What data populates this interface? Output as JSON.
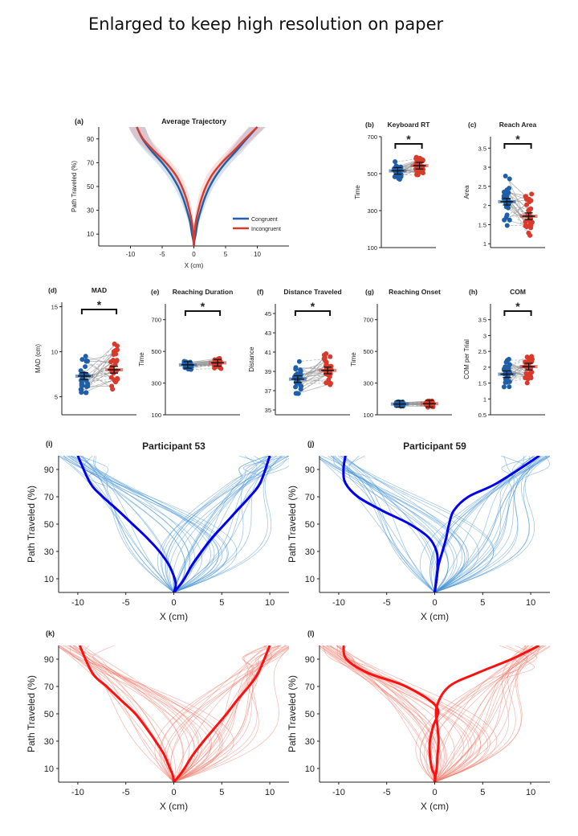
{
  "header": "Enlarged to keep high resolution on paper",
  "colors": {
    "congruent": "#1f5fa8",
    "incongruent": "#d93a2b",
    "congruent_thin": "#3f8fd6",
    "incongruent_thin": "#f07a6a",
    "strong_blue": "#0000ee",
    "strong_red": "#ff1010"
  },
  "chart_data": [
    {
      "panel": "(a)",
      "type": "line",
      "title": "Average Trajectory",
      "xlabel": "X (cm)",
      "ylabel": "Path Traveled (%)",
      "xlim": [
        -15,
        15
      ],
      "ylim": [
        0,
        100
      ],
      "xticks": [
        -10,
        -5,
        0,
        5,
        10
      ],
      "yticks": [
        10,
        30,
        50,
        70,
        90
      ],
      "legend": {
        "placement": "lower-right"
      },
      "series": [
        {
          "name": "Congruent",
          "color": "#1f5fa8",
          "x": [
            0,
            -0.1,
            -0.3,
            -0.6,
            -1.1,
            -1.7,
            -2.5,
            -3.6,
            -5.0,
            -6.7,
            -8.1,
            -9.0
          ],
          "y": [
            0,
            5,
            10,
            20,
            30,
            40,
            50,
            60,
            70,
            80,
            90,
            100
          ]
        },
        {
          "name": "Congruent",
          "color": "#1f5fa8",
          "x": [
            0,
            0.1,
            0.3,
            0.6,
            1.1,
            1.7,
            2.5,
            3.6,
            5.0,
            6.7,
            8.3,
            10.0
          ],
          "y": [
            0,
            5,
            10,
            20,
            30,
            40,
            50,
            60,
            70,
            80,
            90,
            100
          ]
        },
        {
          "name": "Incongruent",
          "color": "#d93a2b",
          "x": [
            0,
            0.0,
            -0.1,
            -0.3,
            -0.7,
            -1.2,
            -1.9,
            -2.9,
            -4.4,
            -6.3,
            -8.0,
            -9.0
          ],
          "y": [
            0,
            5,
            10,
            20,
            30,
            40,
            50,
            60,
            70,
            80,
            90,
            100
          ]
        },
        {
          "name": "Incongruent",
          "color": "#d93a2b",
          "x": [
            0,
            0.0,
            0.1,
            0.3,
            0.7,
            1.2,
            1.9,
            2.9,
            4.4,
            6.3,
            8.1,
            10.0
          ],
          "y": [
            0,
            5,
            10,
            20,
            30,
            40,
            50,
            60,
            70,
            80,
            90,
            100
          ]
        }
      ]
    },
    {
      "panel": "(b)",
      "type": "scatter",
      "title": "Keyboard RT",
      "ylabel": "Time",
      "ylim": [
        100,
        700
      ],
      "yticks": [
        100,
        300,
        500,
        700
      ],
      "means": [
        515,
        543
      ],
      "significant": true
    },
    {
      "panel": "(c)",
      "type": "scatter",
      "title": "Reach Area",
      "ylabel": "Area",
      "ylim": [
        0.9,
        3.8
      ],
      "yticks": [
        1,
        1.5,
        2,
        2.5,
        3,
        3.5
      ],
      "means": [
        2.1,
        1.72
      ],
      "significant": true
    },
    {
      "panel": "(d)",
      "type": "scatter",
      "title": "MAD",
      "ylabel": "MAD (cm)",
      "ylim": [
        3,
        15.5
      ],
      "yticks": [
        5,
        10,
        15
      ],
      "means": [
        7.3,
        8.0
      ],
      "significant": true
    },
    {
      "panel": "(e)",
      "type": "scatter",
      "title": "Reaching Duration",
      "ylabel": "Time",
      "ylim": [
        100,
        800
      ],
      "yticks": [
        100,
        300,
        500,
        700
      ],
      "means": [
        415,
        428
      ],
      "significant": true
    },
    {
      "panel": "(f)",
      "type": "scatter",
      "title": "Distance Traveled",
      "ylabel": "Distance",
      "ylim": [
        34.5,
        46
      ],
      "yticks": [
        35,
        37,
        39,
        41,
        43,
        45
      ],
      "means": [
        38.2,
        39.1
      ],
      "significant": true
    },
    {
      "panel": "(g)",
      "type": "scatter",
      "title": "Reaching Onset",
      "ylabel": "Time",
      "ylim": [
        100,
        800
      ],
      "yticks": [
        100,
        300,
        500,
        700
      ],
      "means": [
        168,
        170
      ],
      "significant": false
    },
    {
      "panel": "(h)",
      "type": "scatter",
      "title": "COM",
      "ylabel": "COM per Trial",
      "ylim": [
        0.5,
        4
      ],
      "yticks": [
        0.5,
        1,
        1.5,
        2,
        2.5,
        3,
        3.5
      ],
      "means": [
        1.78,
        2.02
      ],
      "significant": true
    },
    {
      "panel": "(i)",
      "type": "line",
      "title": "Participant 53",
      "xlabel": "X (cm)",
      "ylabel": "Path Traveled (%)",
      "xlim": [
        -12,
        12
      ],
      "ylim": [
        0,
        100
      ],
      "xticks": [
        -10,
        -5,
        0,
        5,
        10
      ],
      "yticks": [
        10,
        30,
        50,
        70,
        90
      ],
      "mean_left": {
        "x": [
          0,
          0.2,
          0.1,
          -0.5,
          -1.5,
          -2.8,
          -4.3,
          -5.8,
          -7.4,
          -8.7,
          -10
        ],
        "y": [
          0,
          5,
          10,
          20,
          30,
          40,
          50,
          60,
          70,
          80,
          100
        ]
      },
      "mean_right": {
        "x": [
          0,
          0.6,
          1.1,
          1.9,
          2.9,
          4.0,
          5.3,
          6.6,
          7.9,
          9.0,
          10
        ],
        "y": [
          0,
          5,
          10,
          20,
          30,
          40,
          50,
          60,
          70,
          80,
          100
        ]
      }
    },
    {
      "panel": "(j)",
      "type": "line",
      "title": "Participant 59",
      "xlabel": "X (cm)",
      "ylabel": "Path Traveled (%)",
      "xlim": [
        -12,
        12
      ],
      "ylim": [
        0,
        100
      ],
      "xticks": [
        -10,
        -5,
        0,
        5,
        10
      ],
      "yticks": [
        10,
        30,
        50,
        70,
        90
      ],
      "mean_left": {
        "x": [
          0,
          0.1,
          0.2,
          0.3,
          0.2,
          -0.6,
          -2.6,
          -5.5,
          -8.0,
          -9.3,
          -9.5,
          -9.3
        ],
        "y": [
          0,
          5,
          10,
          20,
          30,
          40,
          50,
          60,
          70,
          80,
          90,
          100
        ]
      },
      "mean_right": {
        "x": [
          0,
          0.1,
          0.2,
          0.4,
          0.8,
          1.2,
          1.5,
          2.0,
          3.5,
          6.5,
          10.9
        ],
        "y": [
          0,
          5,
          10,
          20,
          30,
          40,
          50,
          60,
          70,
          80,
          100
        ]
      }
    },
    {
      "panel": "(k)",
      "type": "line",
      "xlabel": "X (cm)",
      "ylabel": "Path Traveled (%)",
      "xlim": [
        -12,
        12
      ],
      "ylim": [
        0,
        100
      ],
      "xticks": [
        -10,
        -5,
        0,
        5,
        10
      ],
      "yticks": [
        10,
        30,
        50,
        70,
        90
      ],
      "mean_left": {
        "x": [
          0,
          -0.1,
          -0.4,
          -1.0,
          -1.9,
          -2.9,
          -4.0,
          -5.5,
          -7.0,
          -8.5,
          -9.8
        ],
        "y": [
          0,
          5,
          10,
          20,
          30,
          40,
          50,
          60,
          70,
          80,
          100
        ]
      },
      "mean_right": {
        "x": [
          0,
          0.6,
          1.1,
          2.0,
          3.1,
          4.3,
          5.5,
          6.6,
          7.8,
          8.8,
          10
        ],
        "y": [
          0,
          5,
          10,
          20,
          30,
          40,
          50,
          60,
          70,
          80,
          100
        ]
      }
    },
    {
      "panel": "(l)",
      "type": "line",
      "xlabel": "X (cm)",
      "ylabel": "Path Traveled (%)",
      "xlim": [
        -12,
        12
      ],
      "ylim": [
        0,
        100
      ],
      "xticks": [
        -10,
        -5,
        0,
        5,
        10
      ],
      "yticks": [
        10,
        30,
        50,
        70,
        90
      ],
      "mean_left": {
        "x": [
          0,
          0.0,
          -0.3,
          -0.5,
          -0.5,
          -0.2,
          0.2,
          -3.0,
          -7.0,
          -9.2,
          -9.5
        ],
        "y": [
          0,
          5,
          10,
          20,
          30,
          40,
          55,
          70,
          80,
          90,
          100
        ]
      },
      "mean_right": {
        "x": [
          0,
          0.1,
          0.2,
          0.3,
          0.4,
          0.3,
          0.2,
          1.5,
          4.5,
          8.0,
          10.9
        ],
        "y": [
          0,
          5,
          10,
          20,
          30,
          40,
          55,
          70,
          80,
          90,
          100
        ]
      }
    }
  ]
}
